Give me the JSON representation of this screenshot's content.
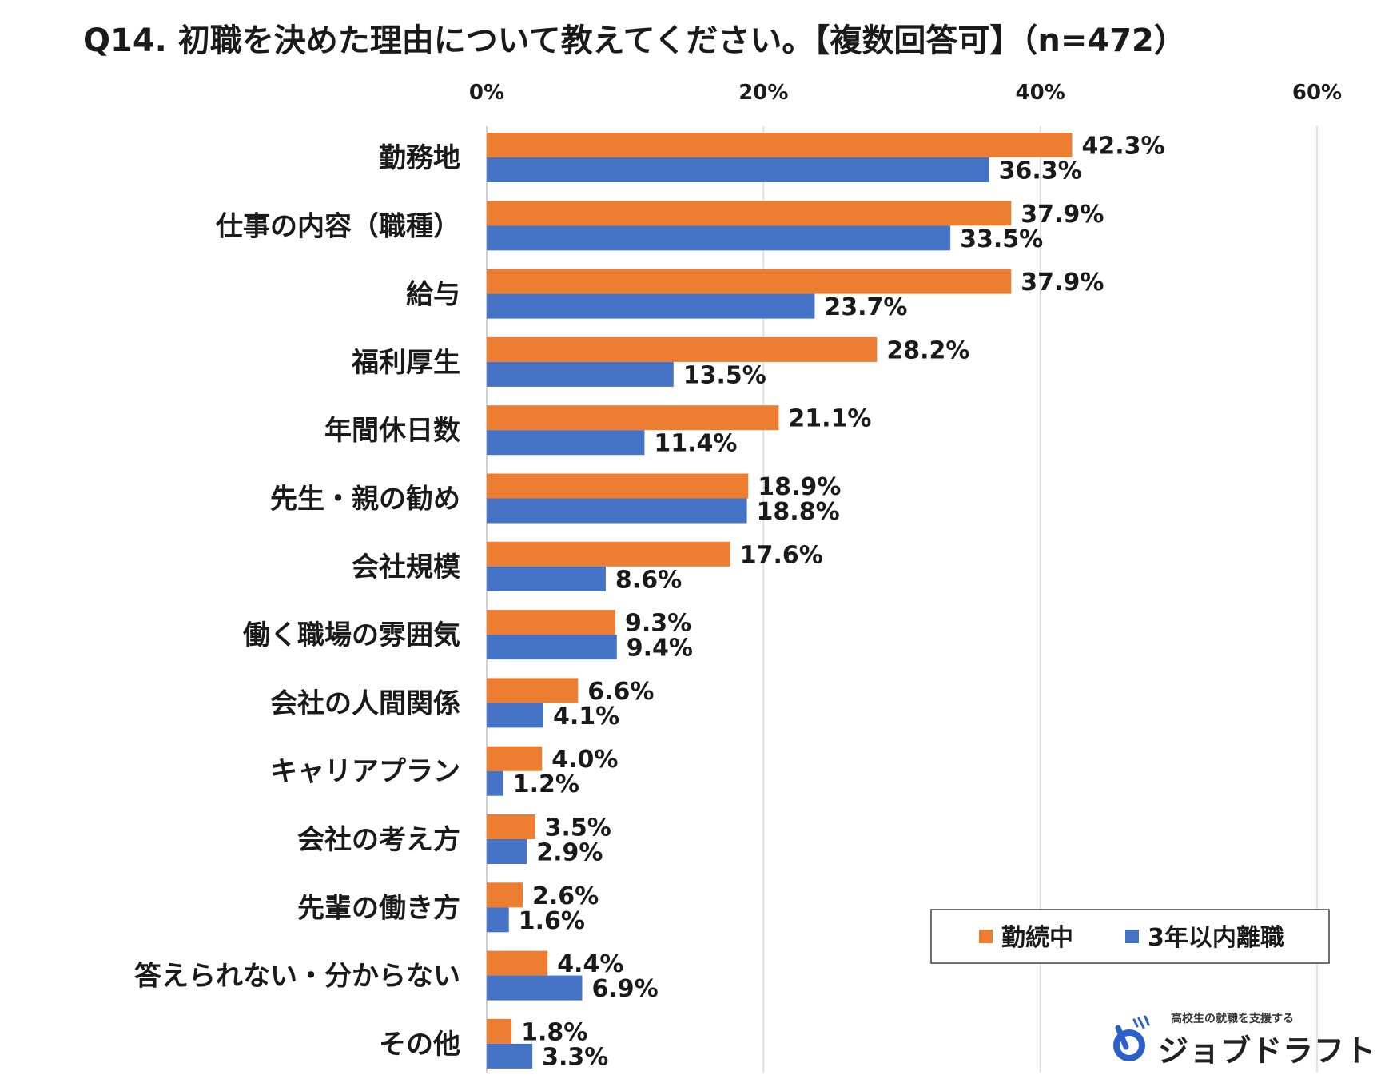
{
  "title": "Q14. 初職を決めた理由について教えてください。【複数回答可】（n=472）",
  "colors": {
    "series1": "#ED7D31",
    "series2": "#4472C4",
    "grid": "#d9d9d9"
  },
  "chart_data": {
    "type": "bar",
    "orientation": "horizontal",
    "title": "Q14. 初職を決めた理由について教えてください。【複数回答可】（n=472）",
    "xlim": [
      0,
      60
    ],
    "xticks": [
      "0%",
      "20%",
      "40%",
      "60%"
    ],
    "xtick_values": [
      0,
      20,
      40,
      60
    ],
    "value_suffix": "%",
    "legend_position": "bottom-right",
    "categories": [
      "勤務地",
      "仕事の内容（職種）",
      "給与",
      "福利厚生",
      "年間休日数",
      "先生・親の勧め",
      "会社規模",
      "働く職場の雰囲気",
      "会社の人間関係",
      "キャリアプラン",
      "会社の考え方",
      "先輩の働き方",
      "答えられない・分からない",
      "その他"
    ],
    "series": [
      {
        "name": "勤続中",
        "values": [
          42.3,
          37.9,
          37.9,
          28.2,
          21.1,
          18.9,
          17.6,
          9.3,
          6.6,
          4.0,
          3.5,
          2.6,
          4.4,
          1.8
        ]
      },
      {
        "name": "3年以内離職",
        "values": [
          36.3,
          33.5,
          23.7,
          13.5,
          11.4,
          18.8,
          8.6,
          9.4,
          4.1,
          1.2,
          2.9,
          1.6,
          6.9,
          3.3
        ]
      }
    ]
  },
  "logo": {
    "tagline": "高校生の就職を支援する",
    "name": "ジョブドラフト"
  }
}
